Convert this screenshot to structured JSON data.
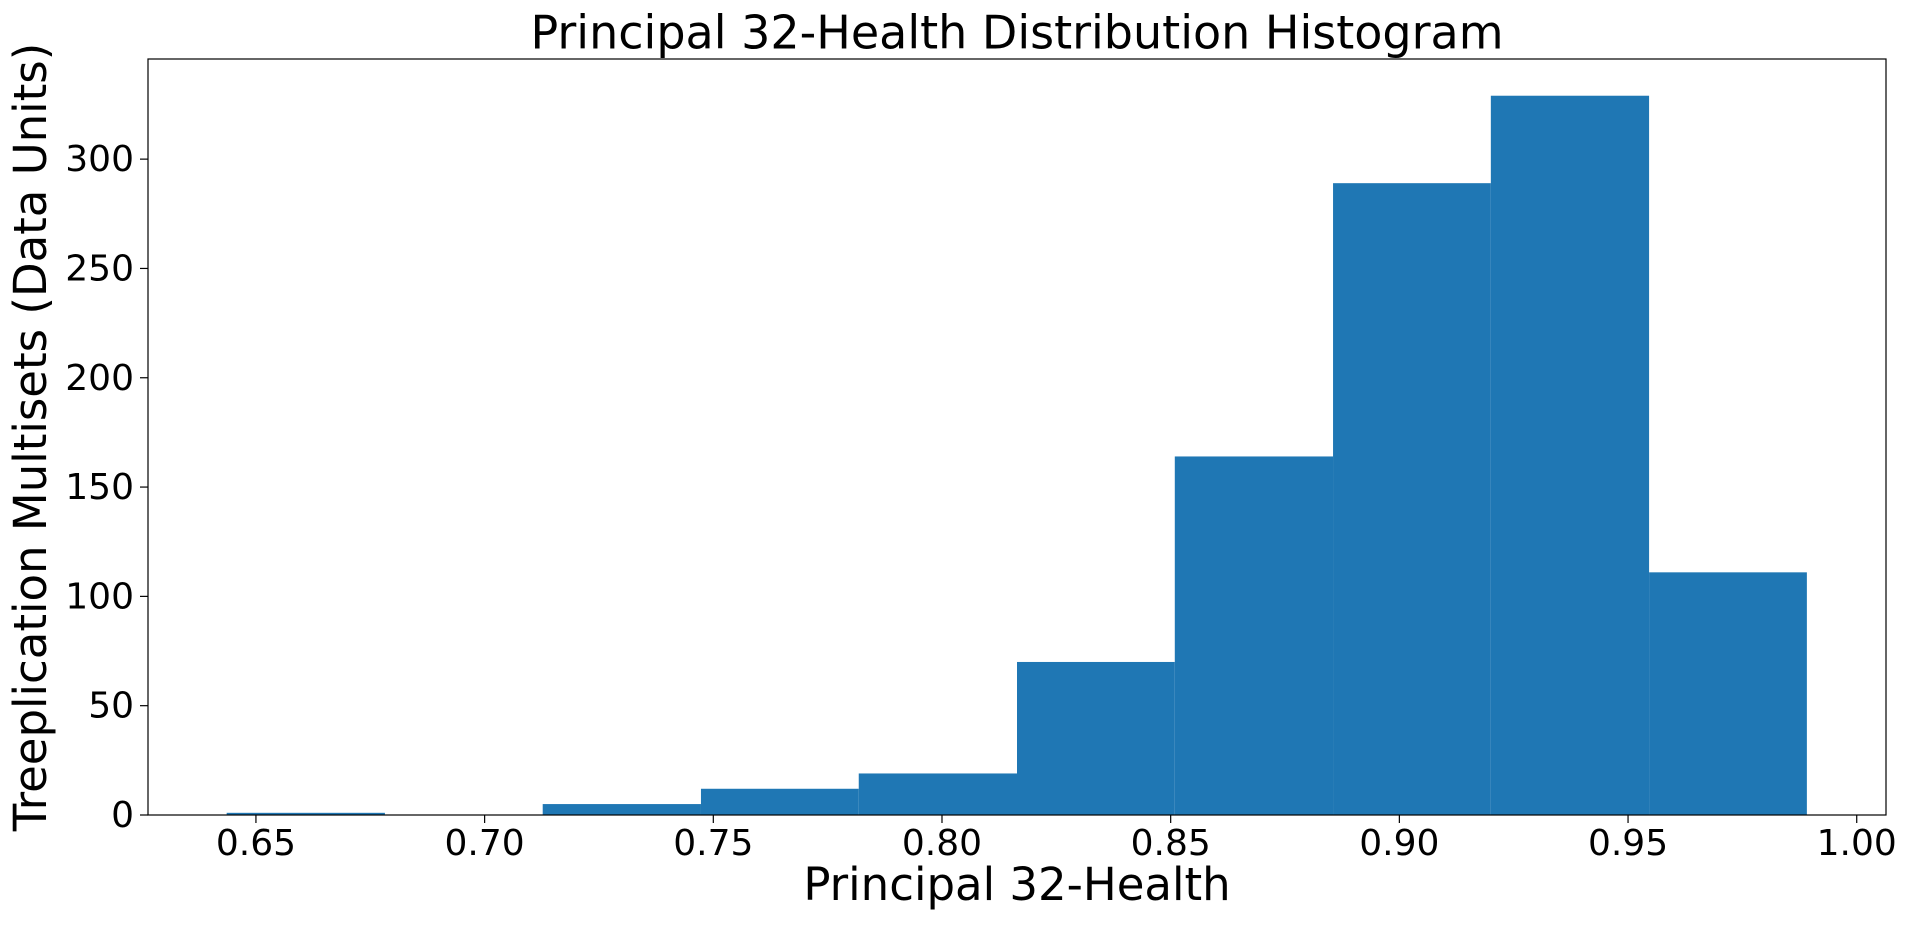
{
  "chart_data": {
    "type": "histogram",
    "title": "Principal 32-Health Distribution Histogram",
    "x_label": "Principal 32-Health",
    "y_label": "Treeplication Multisets (Data Units)",
    "bins": [
      0.6436,
      0.6782,
      0.7127,
      0.7473,
      0.7818,
      0.8164,
      0.8509,
      0.8855,
      0.92,
      0.9546,
      0.9891
    ],
    "values": [
      1,
      0,
      5,
      12,
      19,
      70,
      164,
      289,
      329,
      111
    ],
    "color": "#1f77b4",
    "xlim": [
      0.6264,
      1.0064
    ],
    "xticks": [
      0.65,
      {
        "value": 0.7,
        "label": "0.70"
      },
      0.75,
      {
        "value": 0.8,
        "label": "0.80"
      },
      0.85,
      {
        "value": 0.9,
        "label": "0.90"
      },
      0.95,
      {
        "value": 1.0,
        "label": "1.00"
      }
    ],
    "ylim": [
      0,
      345.8
    ],
    "yticks": [
      0,
      50,
      100,
      150,
      200,
      250,
      300
    ],
    "grid": false
  }
}
